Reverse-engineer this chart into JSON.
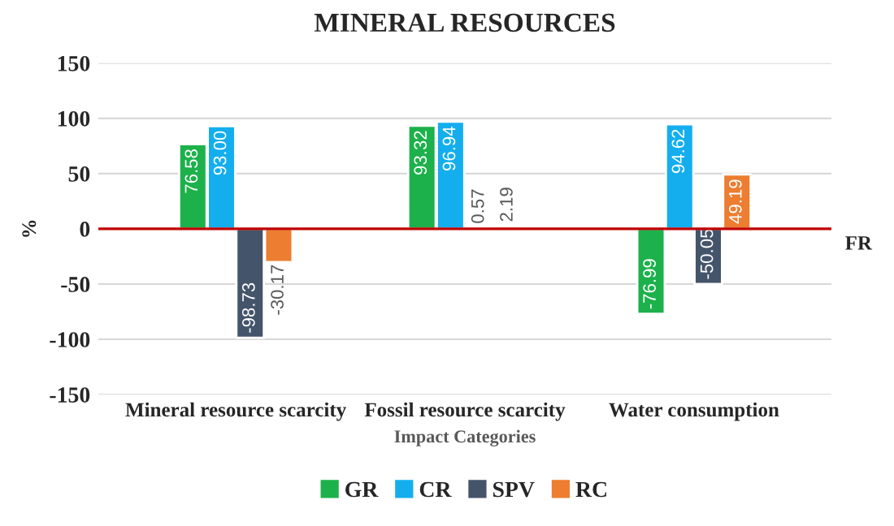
{
  "chart_data": {
    "type": "bar",
    "title": "MINERAL RESOURCES",
    "xlabel": "Impact Categories",
    "ylabel": "%",
    "categories": [
      "Mineral resource scarcity",
      "Fossil resource scarcity",
      "Water consumption"
    ],
    "series": [
      {
        "name": "GR",
        "color": "#1db14b",
        "values": [
          76.58,
          93.32,
          -76.99
        ],
        "value_labels": [
          "76.58",
          "93.32",
          "-76.99"
        ]
      },
      {
        "name": "CR",
        "color": "#14aeef",
        "values": [
          93.0,
          96.94,
          94.62
        ],
        "value_labels": [
          "93.00",
          "96.94",
          "94.62"
        ]
      },
      {
        "name": "SPV",
        "color": "#44546a",
        "values": [
          -98.73,
          0.57,
          -50.05
        ],
        "value_labels": [
          "-98.73",
          "0.57",
          "-50.05"
        ]
      },
      {
        "name": "RC",
        "color": "#ed7d31",
        "values": [
          -30.17,
          2.19,
          49.19
        ],
        "value_labels": [
          "-30.17",
          "2.19",
          "49.19"
        ]
      }
    ],
    "ylim": [
      -150,
      150
    ],
    "yticks": [
      -150,
      -100,
      -50,
      0,
      50,
      100,
      150
    ],
    "ref_lines": [
      {
        "axis": "y",
        "value": 0,
        "label": "FR",
        "color": "#c00000"
      }
    ],
    "grid": "y",
    "legend": "bottom"
  }
}
